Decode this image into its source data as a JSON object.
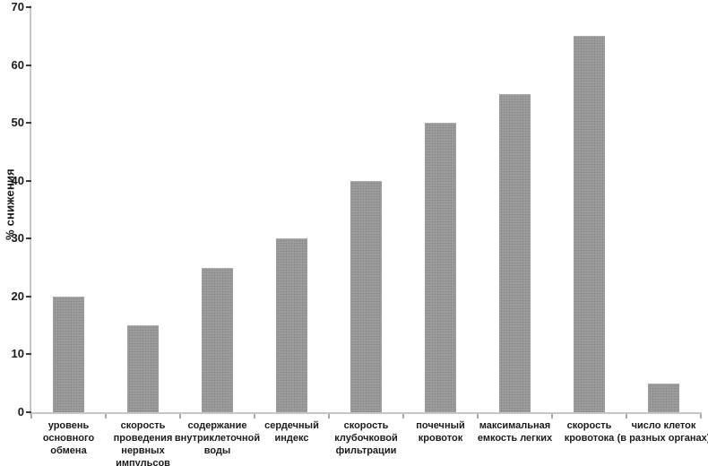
{
  "chart_data": {
    "type": "bar",
    "title": "",
    "xlabel": "",
    "ylabel": "% снижения",
    "ylim": [
      0,
      70
    ],
    "yticks": [
      0,
      10,
      20,
      30,
      40,
      50,
      60,
      70
    ],
    "grid": false,
    "legend_position": "none",
    "bar_color": "#9d9d9d",
    "bar_dot_texture_color": "#878787",
    "axis_line_color": "#c6c6c6",
    "text_color": "#1b1b1b",
    "categories": [
      "уровень\nосновного\nобмена",
      "скорость\nпроведения\nнервных\nимпульсов",
      "содержание\nвнутриклеточной\nводы",
      "сердечный\nиндекс",
      "скорость\nклубочковой\nфильтрации",
      "почечный\nкровоток",
      "максимальная\nемкость легких",
      "скорость\nкровотока",
      "число клеток\n(в разных органах)"
    ],
    "values": [
      20,
      15,
      25,
      30,
      40,
      50,
      55,
      65,
      5
    ]
  }
}
